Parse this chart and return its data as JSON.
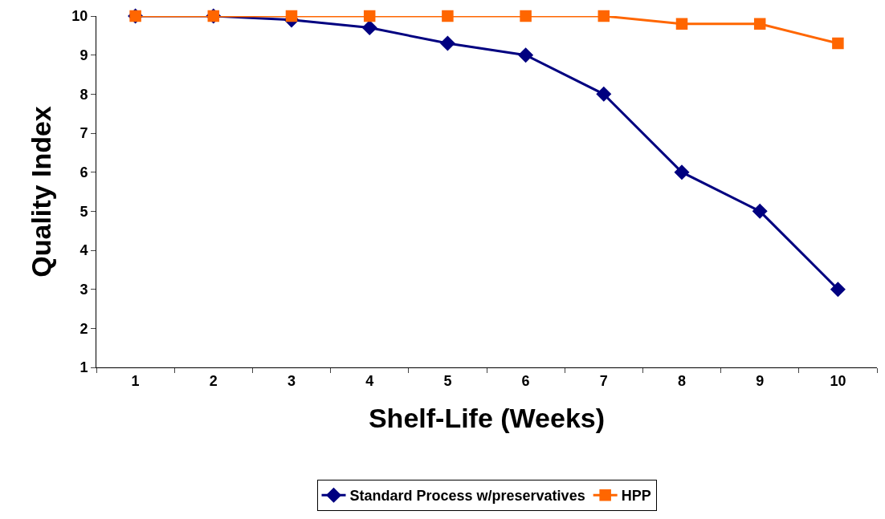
{
  "chart_data": {
    "type": "line",
    "xlabel": "Shelf-Life (Weeks)",
    "ylabel": "Quality Index",
    "categories": [
      "1",
      "2",
      "3",
      "4",
      "5",
      "6",
      "7",
      "8",
      "9",
      "10"
    ],
    "series": [
      {
        "name": "Standard Process w/preservatives",
        "color": "#000080",
        "marker": "diamond",
        "values": [
          10,
          10,
          9.9,
          9.7,
          9.3,
          9.0,
          8.0,
          6.0,
          5.0,
          3.0
        ]
      },
      {
        "name": "HPP",
        "color": "#ff6600",
        "marker": "square",
        "values": [
          10,
          10,
          10,
          10,
          10,
          10,
          10,
          9.8,
          9.8,
          9.3
        ]
      }
    ],
    "ylim": [
      1,
      10
    ],
    "yticks": [
      1,
      2,
      3,
      4,
      5,
      6,
      7,
      8,
      9,
      10
    ],
    "legend": "bottom",
    "line_style": "solid"
  }
}
